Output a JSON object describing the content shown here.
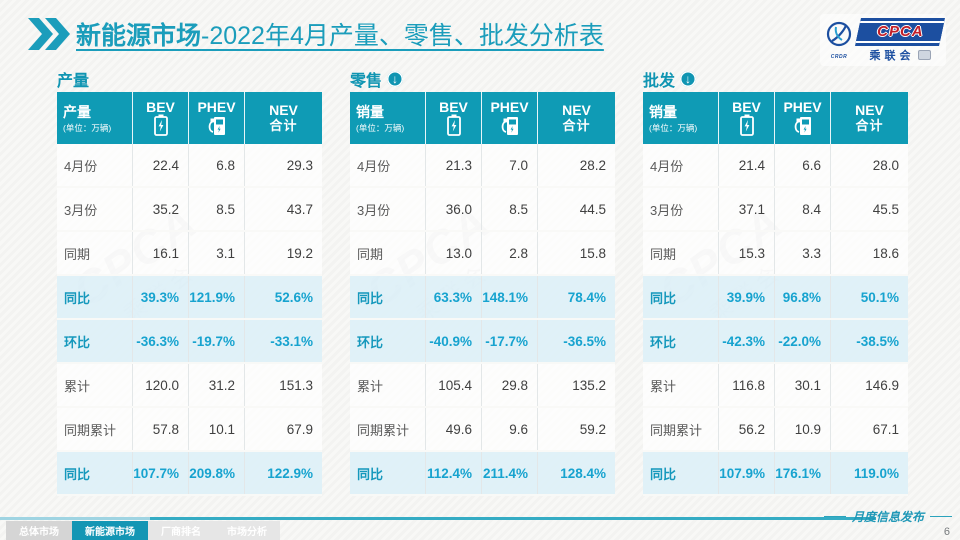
{
  "title": {
    "highlight": "新能源市场",
    "rest": "-2022年4月产量、零售、批发分析表"
  },
  "logo": {
    "emblem_text": "CRDR",
    "cpca": "CPCA",
    "name_cn": "乘联会"
  },
  "watermark": {
    "line1": "CPCA",
    "line2": "乘联会"
  },
  "colors": {
    "accent_teal": "#0F9BB5",
    "title_teal": "#1B9DBB",
    "percent_text": "#17A3CF",
    "percent_row_bg": "#DEF0F8",
    "logo_blue": "#1C4FA0",
    "logo_red": "#C2202A"
  },
  "tables": [
    {
      "section": "产量",
      "has_arrow": false,
      "header": {
        "label": "产量",
        "unit": "(单位：万辆)",
        "col_bev": "BEV",
        "col_phev": "PHEV",
        "col_nev_1": "NEV",
        "col_nev_2": "合计"
      },
      "rows": [
        {
          "label": "4月份",
          "type": "normal",
          "values": [
            "22.4",
            "6.8",
            "29.3"
          ]
        },
        {
          "label": "3月份",
          "type": "normal",
          "values": [
            "35.2",
            "8.5",
            "43.7"
          ]
        },
        {
          "label": "同期",
          "type": "normal",
          "values": [
            "16.1",
            "3.1",
            "19.2"
          ]
        },
        {
          "label": "同比",
          "type": "percent",
          "values": [
            "39.3%",
            "121.9%",
            "52.6%"
          ]
        },
        {
          "label": "环比",
          "type": "percent",
          "values": [
            "-36.3%",
            "-19.7%",
            "-33.1%"
          ]
        },
        {
          "label": "累计",
          "type": "normal",
          "values": [
            "120.0",
            "31.2",
            "151.3"
          ]
        },
        {
          "label": "同期累计",
          "type": "normal",
          "values": [
            "57.8",
            "10.1",
            "67.9"
          ]
        },
        {
          "label": "同比",
          "type": "percent",
          "values": [
            "107.7%",
            "209.8%",
            "122.9%"
          ]
        }
      ]
    },
    {
      "section": "零售",
      "has_arrow": true,
      "header": {
        "label": "销量",
        "unit": "(单位：万辆)",
        "col_bev": "BEV",
        "col_phev": "PHEV",
        "col_nev_1": "NEV",
        "col_nev_2": "合计"
      },
      "rows": [
        {
          "label": "4月份",
          "type": "normal",
          "values": [
            "21.3",
            "7.0",
            "28.2"
          ]
        },
        {
          "label": "3月份",
          "type": "normal",
          "values": [
            "36.0",
            "8.5",
            "44.5"
          ]
        },
        {
          "label": "同期",
          "type": "normal",
          "values": [
            "13.0",
            "2.8",
            "15.8"
          ]
        },
        {
          "label": "同比",
          "type": "percent",
          "values": [
            "63.3%",
            "148.1%",
            "78.4%"
          ]
        },
        {
          "label": "环比",
          "type": "percent",
          "values": [
            "-40.9%",
            "-17.7%",
            "-36.5%"
          ]
        },
        {
          "label": "累计",
          "type": "normal",
          "values": [
            "105.4",
            "29.8",
            "135.2"
          ]
        },
        {
          "label": "同期累计",
          "type": "normal",
          "values": [
            "49.6",
            "9.6",
            "59.2"
          ]
        },
        {
          "label": "同比",
          "type": "percent",
          "values": [
            "112.4%",
            "211.4%",
            "128.4%"
          ]
        }
      ]
    },
    {
      "section": "批发",
      "has_arrow": true,
      "header": {
        "label": "销量",
        "unit": "(单位：万辆)",
        "col_bev": "BEV",
        "col_phev": "PHEV",
        "col_nev_1": "NEV",
        "col_nev_2": "合计"
      },
      "rows": [
        {
          "label": "4月份",
          "type": "normal",
          "values": [
            "21.4",
            "6.6",
            "28.0"
          ]
        },
        {
          "label": "3月份",
          "type": "normal",
          "values": [
            "37.1",
            "8.4",
            "45.5"
          ]
        },
        {
          "label": "同期",
          "type": "normal",
          "values": [
            "15.3",
            "3.3",
            "18.6"
          ]
        },
        {
          "label": "同比",
          "type": "percent",
          "values": [
            "39.9%",
            "96.8%",
            "50.1%"
          ]
        },
        {
          "label": "环比",
          "type": "percent",
          "values": [
            "-42.3%",
            "-22.0%",
            "-38.5%"
          ]
        },
        {
          "label": "累计",
          "type": "normal",
          "values": [
            "116.8",
            "30.1",
            "146.9"
          ]
        },
        {
          "label": "同期累计",
          "type": "normal",
          "values": [
            "56.2",
            "10.9",
            "67.1"
          ]
        },
        {
          "label": "同比",
          "type": "percent",
          "values": [
            "107.9%",
            "176.1%",
            "119.0%"
          ]
        }
      ]
    }
  ],
  "footer": {
    "note": "月度信息发布",
    "page": "6",
    "tabs": [
      {
        "label": "总体市场",
        "active": false
      },
      {
        "label": "新能源市场",
        "active": true
      },
      {
        "label": "厂商排名",
        "active": false
      },
      {
        "label": "市场分析",
        "active": false
      }
    ]
  }
}
